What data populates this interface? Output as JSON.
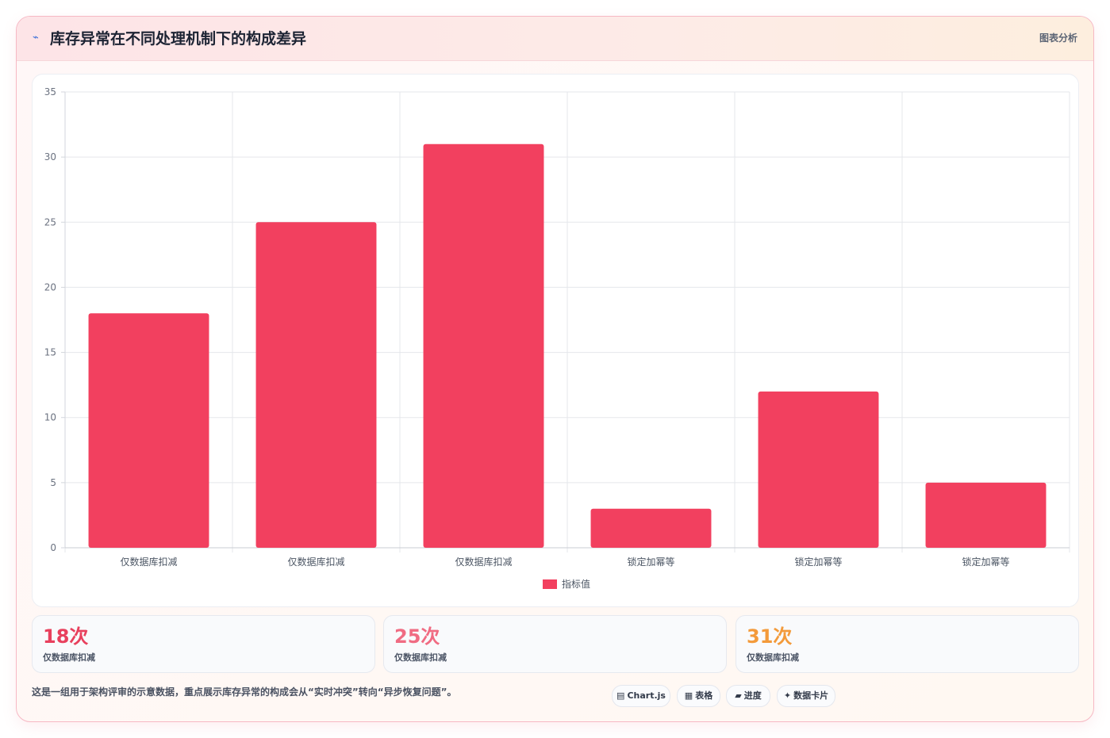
{
  "header": {
    "icon": "trend-icon",
    "title": "库存异常在不同处理机制下的构成差异",
    "tag": "图表分析"
  },
  "chart_data": {
    "type": "bar",
    "categories": [
      "仅数据库扣减",
      "仅数据库扣减",
      "仅数据库扣减",
      "锁定加幂等",
      "锁定加幂等",
      "锁定加幂等"
    ],
    "series": [
      {
        "name": "指标值",
        "values": [
          18,
          25,
          31,
          3,
          12,
          5
        ],
        "color": "#f2405f"
      }
    ],
    "ylim": [
      0,
      35
    ],
    "yticks": [
      0,
      5,
      10,
      15,
      20,
      25,
      30,
      35
    ],
    "grid": true,
    "legend": "bottom",
    "title": "",
    "xlabel": "",
    "ylabel": ""
  },
  "stats": [
    {
      "value": "18次",
      "label": "仅数据库扣减",
      "color": "#e8405d"
    },
    {
      "value": "25次",
      "label": "仅数据库扣减",
      "color": "#f06b82"
    },
    {
      "value": "31次",
      "label": "仅数据库扣减",
      "color": "#f39a3a"
    }
  ],
  "footnote": "这是一组用于架构评审的示意数据，重点展示库存异常的构成会从“实时冲突”转向“异步恢复问题”。",
  "pills": [
    {
      "icon": "▤",
      "label": "Chart.js"
    },
    {
      "icon": "▦",
      "label": "表格"
    },
    {
      "icon": "▰",
      "label": "进度"
    },
    {
      "icon": "✦",
      "label": "数据卡片"
    }
  ]
}
